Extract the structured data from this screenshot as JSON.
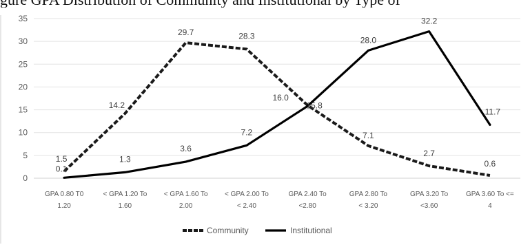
{
  "header": {
    "clipped_title": "gure  GPA Distribution of Community and Institutional by Type of"
  },
  "chart_data": {
    "type": "line",
    "categories": [
      [
        "GPA 0.80 T0",
        "1.20"
      ],
      [
        "< GPA 1.20 To",
        "1.60"
      ],
      [
        "< GPA 1.60 To",
        "2.00"
      ],
      [
        "<   GPA 2.00 To",
        "< 2.40"
      ],
      [
        "GPA 2.40 To",
        "<2.80"
      ],
      [
        "GPA 2.80 To",
        "< 3.20"
      ],
      [
        "GPA 3.20 To",
        "<3.60"
      ],
      [
        "GPA 3.60 To <=",
        "4"
      ]
    ],
    "ylim": [
      0,
      35
    ],
    "yticks": [
      "0",
      "5",
      "10",
      "15",
      "20",
      "25",
      "30",
      "35"
    ],
    "grid": true,
    "legend": "bottom",
    "series": [
      {
        "name": "Community",
        "style": "dashed",
        "color": "#1a1a1a",
        "values": [
          1.5,
          14.2,
          29.7,
          28.3,
          16.0,
          7.1,
          2.7,
          0.6
        ],
        "labels": [
          "1.5",
          "14.2",
          "29.7",
          "28.3",
          "16.0",
          "7.1",
          "2.7",
          "0.6"
        ]
      },
      {
        "name": "Institutional",
        "style": "solid",
        "color": "#000000",
        "values": [
          0.1,
          1.3,
          3.6,
          7.2,
          15.8,
          28.0,
          32.2,
          11.7
        ],
        "labels": [
          "0.1",
          "1.3",
          "3.6",
          "7.2",
          "15.8",
          "28.0",
          "32.2",
          "11.7"
        ]
      }
    ]
  }
}
